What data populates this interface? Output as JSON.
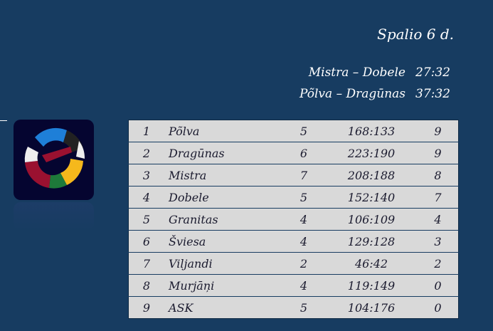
{
  "title": "Spalio 6 d.",
  "results": [
    {
      "match": "Mistra – Dobele",
      "score": "27:32"
    },
    {
      "match": "Põlva – Dragūnas",
      "score": "37:32"
    }
  ],
  "standings": [
    {
      "rank": "1",
      "team": "Põlva",
      "games": "5",
      "points_diff": "168:133",
      "points": "9"
    },
    {
      "rank": "2",
      "team": "Dragūnas",
      "games": "6",
      "points_diff": "223:190",
      "points": "9"
    },
    {
      "rank": "3",
      "team": "Mistra",
      "games": "7",
      "points_diff": "208:188",
      "points": "8"
    },
    {
      "rank": "4",
      "team": "Dobele",
      "games": "5",
      "points_diff": "152:140",
      "points": "7"
    },
    {
      "rank": "5",
      "team": "Granitas",
      "games": "4",
      "points_diff": "106:109",
      "points": "4"
    },
    {
      "rank": "6",
      "team": "Šviesa",
      "games": "4",
      "points_diff": "129:128",
      "points": "3"
    },
    {
      "rank": "7",
      "team": "Viljandi",
      "games": "2",
      "points_diff": "46:42",
      "points": "2"
    },
    {
      "rank": "8",
      "team": "Murjāņi",
      "games": "4",
      "points_diff": "119:149",
      "points": "0"
    },
    {
      "rank": "9",
      "team": "ASK",
      "games": "5",
      "points_diff": "104:176",
      "points": "0"
    }
  ],
  "colors": {
    "background": "#173c61",
    "table": "#d9d9d9"
  },
  "logo_icon": "hands-circle-logo"
}
